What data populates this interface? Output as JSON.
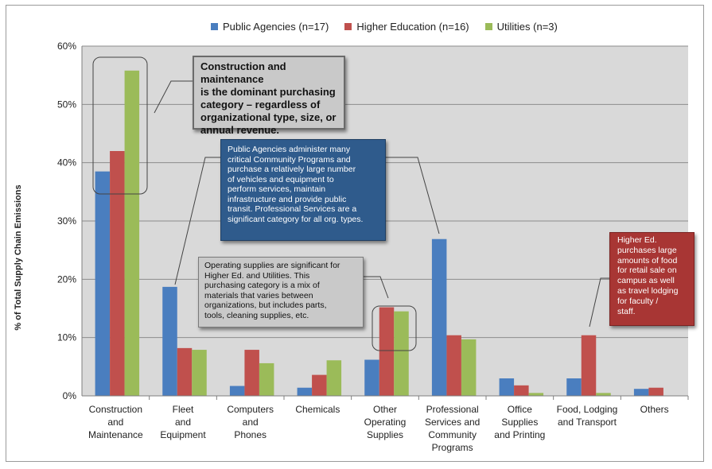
{
  "chart_data": {
    "type": "bar",
    "ylabel": "% of Total Supply Chain Emissions",
    "xlabel": "",
    "ylim": [
      0,
      60
    ],
    "yticks": [
      "0%",
      "10%",
      "20%",
      "30%",
      "40%",
      "50%",
      "60%"
    ],
    "grid": true,
    "legend_position": "top",
    "categories": [
      [
        "Construction",
        "and",
        "Maintenance"
      ],
      [
        "Fleet",
        "and",
        "Equipment"
      ],
      [
        "Computers",
        "and",
        "Phones"
      ],
      [
        "Chemicals"
      ],
      [
        "Other",
        "Operating",
        "Supplies"
      ],
      [
        "Professional",
        "Services and",
        "Community",
        "Programs"
      ],
      [
        "Office",
        "Supplies",
        "and Printing"
      ],
      [
        "Food, Lodging",
        "and Transport"
      ],
      [
        "Others"
      ]
    ],
    "series": [
      {
        "name": "Public Agencies (n=17)",
        "color": "#4a7ebf",
        "values": [
          38.5,
          18.7,
          1.7,
          1.4,
          6.2,
          26.9,
          3.0,
          3.0,
          1.2
        ]
      },
      {
        "name": "Higher Education (n=16)",
        "color": "#c0504d",
        "values": [
          42.0,
          8.2,
          7.9,
          3.6,
          15.2,
          10.4,
          1.8,
          10.4,
          1.4
        ]
      },
      {
        "name": "Utilities (n=3)",
        "color": "#9bbb59",
        "values": [
          55.8,
          7.9,
          5.6,
          6.1,
          14.5,
          9.7,
          0.5,
          0.5,
          0.0
        ]
      }
    ],
    "annotations": {
      "construction": [
        "Construction and maintenance",
        "is the dominant purchasing",
        "category – regardless of",
        "organizational type, size, or",
        "annual revenue."
      ],
      "public": [
        "Public Agencies administer many",
        "critical Community Programs and",
        "purchase a relatively large number",
        "of vehicles and equipment to",
        "perform services, maintain",
        "infrastructure and provide public",
        "transit.  Professional Services are a",
        "significant category for all org. types."
      ],
      "operating": [
        "Operating supplies are significant for",
        "Higher Ed. and Utilities.  This",
        "purchasing category is a mix of",
        "materials that varies between",
        "organizations, but includes parts,",
        "tools, cleaning supplies, etc."
      ],
      "higher": [
        "Higher Ed.",
        "purchases large",
        "amounts of food",
        "for retail sale on",
        "campus as well",
        "as travel lodging",
        "for faculty /",
        "staff."
      ]
    }
  }
}
